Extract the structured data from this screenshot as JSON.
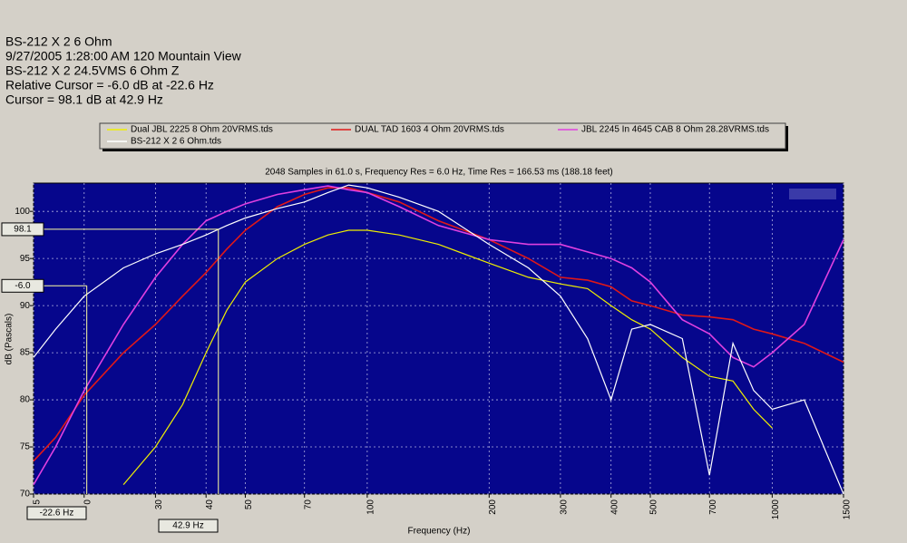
{
  "chart_data": {
    "type": "line",
    "info": [
      "BS-212 X 2 6 Ohm",
      "9/27/2005 1:28:00 AM    120 Mountain View",
      "BS-212 X 2 24.5VMS 6 Ohm Z",
      "Relative Cursor = -6.0 dB at -22.6 Hz",
      "Cursor = 98.1 dB at 42.9 Hz"
    ],
    "title": "2048 Samples in 61.0 s, Frequency Res = 6.0 Hz, Time Res = 166.53 ms (188.18 feet)",
    "x_label": "Frequency (Hz)",
    "y_label": "dB (Pascals)",
    "log_x": true,
    "grid": true,
    "legend": "top",
    "xlim": [
      15,
      1500
    ],
    "ylim": [
      70,
      103
    ],
    "xticks": [
      {
        "value": 15,
        "label": "5"
      },
      {
        "value": 20,
        "label": "0"
      },
      30,
      40,
      50,
      70,
      100,
      200,
      300,
      400,
      500,
      700,
      1000,
      1500
    ],
    "yticks": [
      70,
      75,
      80,
      85,
      90,
      95,
      100
    ],
    "x": [
      15,
      17,
      20,
      25,
      30,
      35,
      40,
      45,
      50,
      60,
      70,
      80,
      90,
      100,
      120,
      150,
      200,
      250,
      300,
      350,
      400,
      450,
      500,
      600,
      700,
      800,
      900,
      1000,
      1200,
      1500
    ],
    "series": [
      {
        "name": "Dual JBL 2225 8 Ohm 20VRMS.tds",
        "color": "#f0f000",
        "values": [
          null,
          null,
          null,
          71,
          75,
          79.5,
          85,
          89.5,
          92.5,
          95,
          96.5,
          97.5,
          98,
          98,
          97.5,
          96.5,
          94.5,
          93,
          92.3,
          91.8,
          90,
          88.5,
          87.5,
          84.5,
          82.5,
          82,
          79,
          77,
          null,
          null
        ]
      },
      {
        "name": "DUAL TAD 1603 4 Ohm 20VRMS.tds",
        "color": "#e01818",
        "values": [
          73.5,
          76,
          80.5,
          85,
          88,
          91,
          93.5,
          96,
          98,
          100.5,
          101.8,
          102.5,
          102.5,
          102,
          101,
          99,
          97,
          95,
          93,
          92.7,
          92,
          90.5,
          90,
          89,
          88.8,
          88.5,
          87.5,
          87,
          86,
          84
        ]
      },
      {
        "name": "JBL 2245 In 4645 CAB 8 Ohm 28.28VRMS.tds",
        "color": "#e040e0",
        "values": [
          71,
          75,
          81,
          88,
          93,
          96.5,
          99,
          100,
          100.8,
          101.8,
          102.3,
          102.7,
          102.3,
          102,
          100.5,
          98.5,
          97,
          96.5,
          96.5,
          95.7,
          95,
          94,
          92.5,
          88.5,
          87,
          84.5,
          83.5,
          85,
          88,
          97
        ]
      },
      {
        "name": "BS-212 X 2 6 Ohm.tds",
        "color": "#ffffff",
        "values": [
          84.5,
          87.5,
          91,
          94,
          95.5,
          96.5,
          97.5,
          98.5,
          99.3,
          100.3,
          101,
          102,
          102.8,
          102.5,
          101.5,
          100,
          96.5,
          94,
          91,
          86.5,
          80,
          87.5,
          88,
          86.5,
          72,
          86,
          81,
          79,
          80,
          70
        ]
      }
    ],
    "cursor": {
      "freq": 42.9,
      "freq_label": "42.9 Hz",
      "level": 98.1,
      "level_label": "98.1"
    },
    "relative_cursor": {
      "freq_offset": -22.6,
      "freq_label": "-22.6 Hz",
      "level_offset": -6.0,
      "level_label": "-6.0"
    }
  }
}
